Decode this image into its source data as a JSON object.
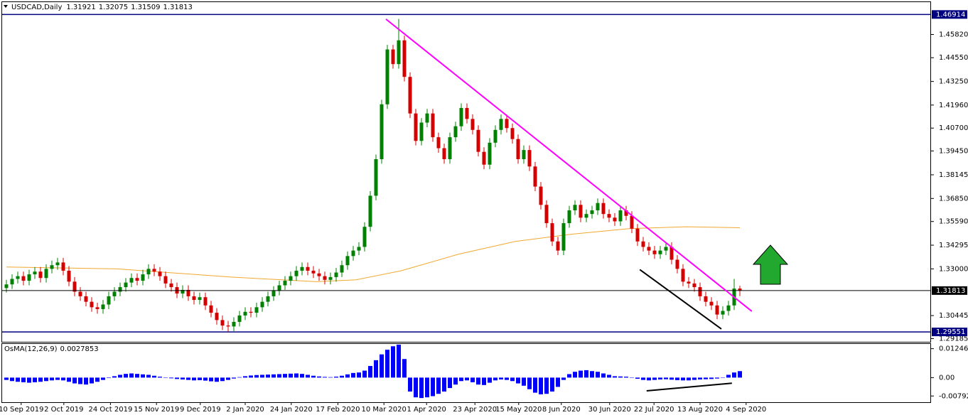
{
  "chart_data": {
    "type": "candlestick",
    "symbol": "USDCAD,Daily",
    "up_color": "#008000",
    "down_color": "#d40000",
    "open": [
      1.3195,
      1.3215,
      1.3245,
      1.326,
      1.3235,
      1.327,
      1.3285,
      1.325,
      1.33,
      1.332,
      1.3335,
      1.329,
      1.323,
      1.3175,
      1.315,
      1.312,
      1.309,
      1.308,
      1.3105,
      1.315,
      1.3175,
      1.32,
      1.3225,
      1.325,
      1.3235,
      1.327,
      1.33,
      1.3285,
      1.326,
      1.322,
      1.32,
      1.3165,
      1.3185,
      1.315,
      1.313,
      1.3145,
      1.31,
      1.306,
      1.302,
      1.299,
      1.2985,
      1.301,
      1.3045,
      1.3065,
      1.306,
      1.309,
      1.312,
      1.315,
      1.318,
      1.321,
      1.3235,
      1.326,
      1.329,
      1.331,
      1.329,
      1.3275,
      1.326,
      1.324,
      1.3255,
      1.328,
      1.332,
      1.337,
      1.34,
      1.342,
      1.353,
      1.37,
      1.39,
      1.42,
      1.45,
      1.442,
      1.455,
      1.435,
      1.415,
      1.4,
      1.41,
      1.415,
      1.402,
      1.396,
      1.39,
      1.402,
      1.408,
      1.418,
      1.412,
      1.406,
      1.394,
      1.387,
      1.399,
      1.406,
      1.412,
      1.407,
      1.401,
      1.39,
      1.395,
      1.386,
      1.375,
      1.365,
      1.355,
      1.345,
      1.34,
      1.355,
      1.362,
      1.365,
      1.358,
      1.36,
      1.362,
      1.366,
      1.36,
      1.358,
      1.356,
      1.362,
      1.359,
      1.352,
      1.345,
      1.342,
      1.34,
      1.338,
      1.34,
      1.342,
      1.335,
      1.33,
      1.323,
      1.322,
      1.32,
      1.315,
      1.312,
      1.31,
      1.305,
      1.307,
      1.31,
      1.31921
    ],
    "high": [
      1.324,
      1.327,
      1.3285,
      1.3285,
      1.3295,
      1.331,
      1.331,
      1.3325,
      1.3345,
      1.336,
      1.336,
      1.3315,
      1.3255,
      1.32,
      1.3175,
      1.3145,
      1.3115,
      1.313,
      1.3175,
      1.32,
      1.3225,
      1.325,
      1.3275,
      1.3275,
      1.3295,
      1.3325,
      1.3325,
      1.331,
      1.3285,
      1.3245,
      1.3225,
      1.321,
      1.321,
      1.3175,
      1.317,
      1.317,
      1.3125,
      1.3085,
      1.3045,
      1.3015,
      1.3035,
      1.307,
      1.309,
      1.309,
      1.3115,
      1.3145,
      1.3175,
      1.3205,
      1.3235,
      1.326,
      1.3285,
      1.3315,
      1.3335,
      1.3335,
      1.3315,
      1.33,
      1.3285,
      1.328,
      1.3305,
      1.3345,
      1.3395,
      1.3425,
      1.3445,
      1.3555,
      1.3725,
      1.3925,
      1.4225,
      1.4525,
      1.4525,
      1.4667,
      1.4575,
      1.4375,
      1.4175,
      1.4125,
      1.4175,
      1.4175,
      1.4045,
      1.3985,
      1.4045,
      1.4105,
      1.4205,
      1.4205,
      1.4145,
      1.4085,
      1.3965,
      1.4015,
      1.4085,
      1.4145,
      1.4145,
      1.4095,
      1.4035,
      1.3975,
      1.3975,
      1.3885,
      1.3775,
      1.3675,
      1.3575,
      1.3475,
      1.3575,
      1.3645,
      1.3675,
      1.3675,
      1.3625,
      1.3645,
      1.3685,
      1.3685,
      1.3625,
      1.3605,
      1.3645,
      1.3645,
      1.3615,
      1.3545,
      1.3475,
      1.3445,
      1.3425,
      1.3425,
      1.3445,
      1.3445,
      1.3375,
      1.3325,
      1.3255,
      1.3245,
      1.3225,
      1.3175,
      1.3145,
      1.3125,
      1.3095,
      1.3125,
      1.3245,
      1.32075
    ],
    "low": [
      1.317,
      1.319,
      1.322,
      1.321,
      1.321,
      1.3245,
      1.3225,
      1.3225,
      1.3275,
      1.3295,
      1.3265,
      1.3205,
      1.315,
      1.3125,
      1.3095,
      1.3065,
      1.3055,
      1.3055,
      1.308,
      1.3125,
      1.315,
      1.3175,
      1.32,
      1.321,
      1.321,
      1.3245,
      1.326,
      1.3235,
      1.3195,
      1.3175,
      1.314,
      1.314,
      1.3125,
      1.3105,
      1.3105,
      1.3075,
      1.3035,
      1.2995,
      1.2965,
      1.2956,
      1.296,
      1.2985,
      1.302,
      1.3035,
      1.3035,
      1.3065,
      1.3095,
      1.3125,
      1.3155,
      1.3185,
      1.321,
      1.3235,
      1.3265,
      1.3265,
      1.325,
      1.3235,
      1.3215,
      1.3215,
      1.323,
      1.3255,
      1.3295,
      1.3345,
      1.3375,
      1.3395,
      1.3505,
      1.3675,
      1.3875,
      1.4175,
      1.4395,
      1.4395,
      1.4325,
      1.4125,
      1.3975,
      1.3975,
      1.4075,
      1.3995,
      1.3935,
      1.3875,
      1.3875,
      1.3995,
      1.4055,
      1.4095,
      1.4035,
      1.3915,
      1.3845,
      1.3845,
      1.3965,
      1.4035,
      1.4045,
      1.3985,
      1.3875,
      1.3875,
      1.3835,
      1.3725,
      1.3625,
      1.3525,
      1.3425,
      1.3375,
      1.3375,
      1.3525,
      1.3595,
      1.3555,
      1.3555,
      1.3575,
      1.3595,
      1.3575,
      1.3555,
      1.3535,
      1.3535,
      1.3565,
      1.3495,
      1.3425,
      1.3395,
      1.3375,
      1.3355,
      1.3355,
      1.3375,
      1.3325,
      1.3275,
      1.3205,
      1.3195,
      1.3175,
      1.3125,
      1.3095,
      1.3075,
      1.3025,
      1.3025,
      1.3045,
      1.3075,
      1.31509
    ],
    "close": [
      1.3215,
      1.3245,
      1.326,
      1.3235,
      1.327,
      1.3285,
      1.325,
      1.33,
      1.332,
      1.3335,
      1.329,
      1.323,
      1.3175,
      1.315,
      1.312,
      1.309,
      1.308,
      1.3105,
      1.315,
      1.3175,
      1.32,
      1.3225,
      1.325,
      1.3235,
      1.327,
      1.33,
      1.3285,
      1.326,
      1.322,
      1.32,
      1.3165,
      1.3185,
      1.315,
      1.313,
      1.3145,
      1.31,
      1.306,
      1.302,
      1.299,
      1.2985,
      1.301,
      1.3045,
      1.3065,
      1.306,
      1.309,
      1.312,
      1.315,
      1.318,
      1.321,
      1.3235,
      1.326,
      1.329,
      1.331,
      1.329,
      1.3275,
      1.326,
      1.324,
      1.3255,
      1.328,
      1.332,
      1.337,
      1.34,
      1.342,
      1.353,
      1.37,
      1.39,
      1.42,
      1.45,
      1.442,
      1.455,
      1.435,
      1.415,
      1.4,
      1.41,
      1.415,
      1.402,
      1.396,
      1.39,
      1.402,
      1.408,
      1.418,
      1.412,
      1.406,
      1.394,
      1.387,
      1.399,
      1.406,
      1.412,
      1.407,
      1.401,
      1.39,
      1.395,
      1.386,
      1.375,
      1.365,
      1.355,
      1.345,
      1.34,
      1.355,
      1.362,
      1.365,
      1.358,
      1.36,
      1.362,
      1.366,
      1.36,
      1.358,
      1.356,
      1.362,
      1.359,
      1.352,
      1.345,
      1.342,
      1.34,
      1.338,
      1.34,
      1.342,
      1.335,
      1.33,
      1.323,
      1.322,
      1.32,
      1.315,
      1.312,
      1.31,
      1.305,
      1.307,
      1.31,
      1.31921,
      1.31813
    ],
    "xlim": [
      0,
      163
    ],
    "xticks": [
      {
        "value": 3.1,
        "label": "10 Sep 2019"
      },
      {
        "value": 10.6,
        "label": "2 Oct 2019"
      },
      {
        "value": 18.8,
        "label": "24 Oct 2019"
      },
      {
        "value": 26.9,
        "label": "15 Nov 2019"
      },
      {
        "value": 34.6,
        "label": "9 Dec 2019"
      },
      {
        "value": 42.5,
        "label": "2 Jan 2020"
      },
      {
        "value": 50.6,
        "label": "24 Jan 2020"
      },
      {
        "value": 58.8,
        "label": "17 Feb 2020"
      },
      {
        "value": 66.9,
        "label": "10 Mar 2020"
      },
      {
        "value": 74.4,
        "label": "1 Apr 2020"
      },
      {
        "value": 82.9,
        "label": "23 Apr 2020"
      },
      {
        "value": 90.6,
        "label": "15 May 2020"
      },
      {
        "value": 98.1,
        "label": "8 Jun 2020"
      },
      {
        "value": 106.6,
        "label": "30 Jun 2020"
      },
      {
        "value": 114.4,
        "label": "22 Jul 2020"
      },
      {
        "value": 122.5,
        "label": "13 Aug 2020"
      },
      {
        "value": 130.6,
        "label": "4 Sep 2020"
      }
    ],
    "ylim": [
      1.2901,
      1.472
    ],
    "yticks": [
      {
        "value": 1.4582,
        "label": "1.45820"
      },
      {
        "value": 1.4455,
        "label": "1.44550"
      },
      {
        "value": 1.4325,
        "label": "1.43250"
      },
      {
        "value": 1.4196,
        "label": "1.41960"
      },
      {
        "value": 1.407,
        "label": "1.40700"
      },
      {
        "value": 1.3945,
        "label": "1.39450"
      },
      1.38145,
      {
        "value": 1.3685,
        "label": "1.36850"
      },
      {
        "value": 1.3559,
        "label": "1.35590"
      },
      1.34295,
      {
        "value": 1.33,
        "label": "1.33000"
      },
      1.30445,
      1.29185
    ],
    "hlines": [
      {
        "value": 1.46914,
        "color": "#000080"
      },
      {
        "value": 1.29551,
        "color": "#000080"
      }
    ],
    "current_color": "#000000",
    "overlays": [
      {
        "color": "#f0a830",
        "x": [
          0.5,
          20,
          40,
          55,
          62,
          70,
          80,
          90,
          100,
          110,
          120,
          129.5
        ],
        "values": [
          1.331,
          1.33,
          1.3255,
          1.323,
          1.324,
          1.329,
          1.338,
          1.345,
          1.349,
          1.352,
          1.353,
          1.3525
        ]
      }
    ],
    "trendlines": [
      {
        "color": "#ff00ff",
        "x": [
          67.25,
          131.6
        ],
        "values": [
          1.4666,
          1.3068
        ]
      },
      {
        "color": "#000000",
        "x": [
          111.9,
          126.25
        ],
        "values": [
          1.3296,
          1.2971
        ]
      }
    ],
    "indicator": {
      "type": "bar",
      "name": "OsMA(12,26,9)",
      "color": "#0000ff",
      "ylim": [
        -0.0106,
        0.0145
      ],
      "yticks": [
        0.0124628,
        {
          "value": 0,
          "label": "0.00"
        },
        -0.0079218
      ],
      "values": [
        -0.001,
        -0.0015,
        -0.0018,
        -0.002,
        -0.0022,
        -0.002,
        -0.0018,
        -0.0015,
        -0.0012,
        -0.001,
        -0.0012,
        -0.0018,
        -0.0025,
        -0.0028,
        -0.003,
        -0.0025,
        -0.0018,
        -0.001,
        -0.0002,
        0.0006,
        0.0012,
        0.0016,
        0.0018,
        0.0016,
        0.0014,
        0.0012,
        0.0008,
        0.0004,
        0.0001,
        -0.0003,
        -0.0006,
        -0.0008,
        -0.001,
        -0.0012,
        -0.0011,
        -0.0013,
        -0.0016,
        -0.0018,
        -0.0015,
        -0.001,
        -0.0004,
        0.0002,
        0.0006,
        0.0009,
        0.0011,
        0.0012,
        0.0013,
        0.0014,
        0.0015,
        0.0016,
        0.0017,
        0.0018,
        0.0016,
        0.0012,
        0.0008,
        0.0005,
        0.0003,
        0.0002,
        0.0004,
        0.0008,
        0.0014,
        0.002,
        0.0022,
        0.003,
        0.005,
        0.0075,
        0.01,
        0.012,
        0.0135,
        0.0142,
        0.008,
        -0.006,
        -0.0085,
        -0.0088,
        -0.0085,
        -0.008,
        -0.007,
        -0.006,
        -0.0045,
        -0.003,
        -0.0015,
        -0.0012,
        -0.002,
        -0.003,
        -0.0032,
        -0.0022,
        -0.0012,
        -0.0008,
        -0.001,
        -0.0015,
        -0.0025,
        -0.0035,
        -0.005,
        -0.0065,
        -0.0072,
        -0.007,
        -0.006,
        -0.004,
        -0.001,
        0.0015,
        0.0025,
        0.003,
        0.0032,
        0.0028,
        0.0025,
        0.0018,
        0.0012,
        0.0006,
        0.0005,
        0.0004,
        0.0001,
        -0.0005,
        -0.001,
        -0.0012,
        -0.001,
        -0.0008,
        -0.0007,
        -0.0009,
        -0.0011,
        -0.0012,
        -0.0012,
        -0.001,
        -0.0008,
        -0.0007,
        -0.0006,
        -0.0004,
        -0.0001,
        0.0012,
        0.0022,
        0.0027853
      ],
      "trendlines": [
        {
          "color": "#000000",
          "x": [
            113.1,
            128.1
          ],
          "values": [
            -0.0057,
            -0.0024
          ]
        }
      ]
    }
  }
}
